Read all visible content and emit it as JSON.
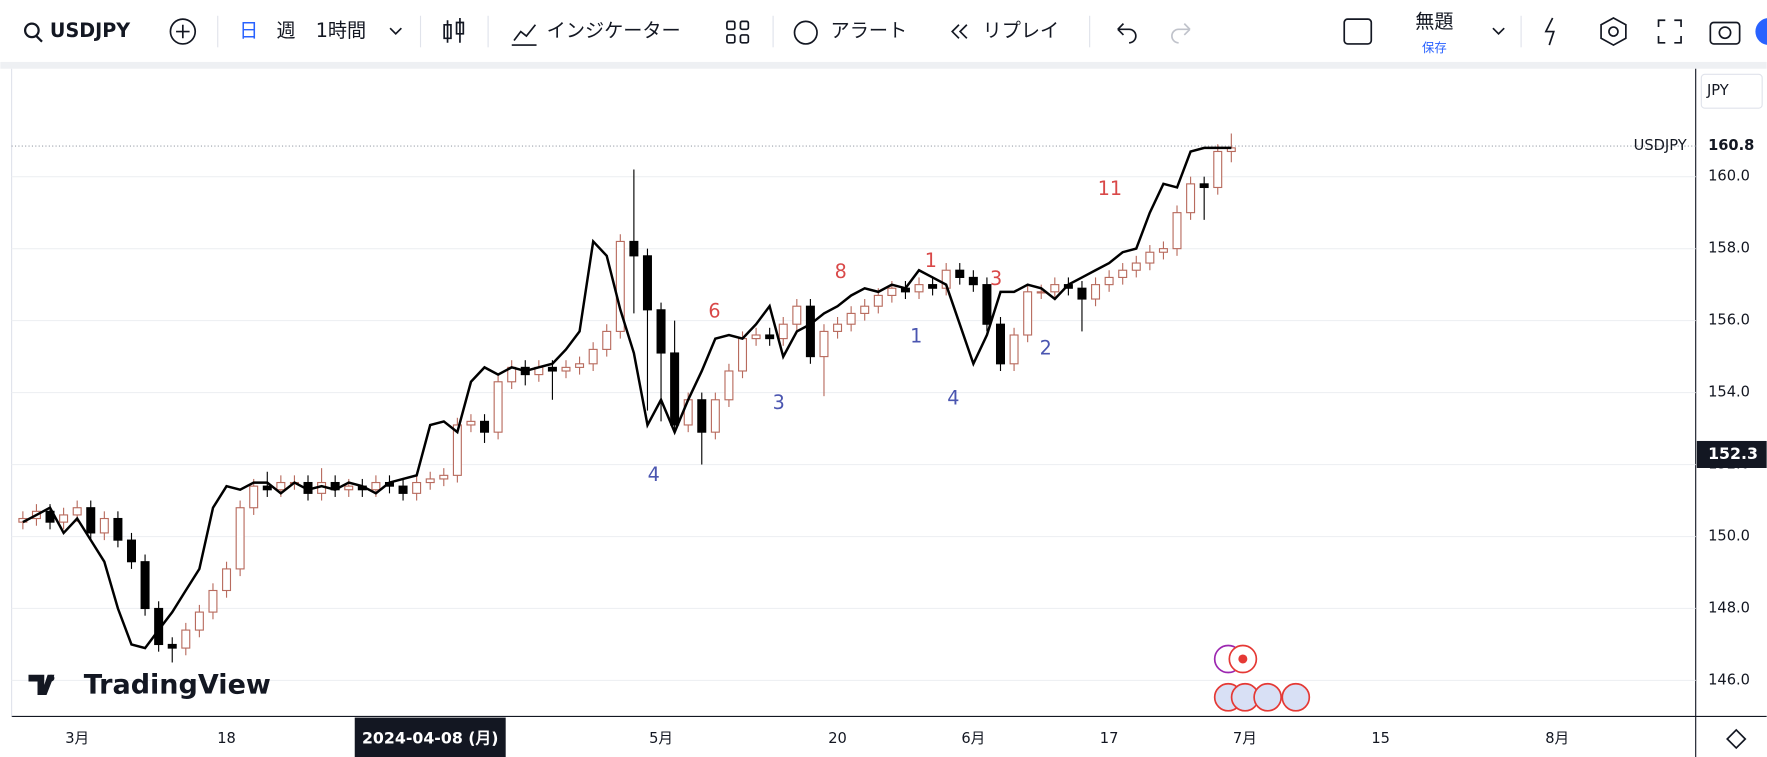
{
  "toolbar": {
    "symbol": "USDJPY",
    "day": "日",
    "week": "週",
    "interval": "1時間",
    "indicators": "インジケーター",
    "alert": "アラート",
    "replay": "リプレイ",
    "layout_name": "無題",
    "save": "保存"
  },
  "chart_data": {
    "type": "candlestick",
    "symbol_label": "USDJPY",
    "currency": "JPY",
    "logo": "TradingView",
    "up_color": "#b86b5e",
    "down_color": "#000000",
    "line_color": "#000000",
    "xlim": [
      -0.83,
      123.2
    ],
    "xticks": [
      {
        "value": 4,
        "label": "3月"
      },
      {
        "value": 15,
        "label": "18"
      },
      {
        "value": 47,
        "label": "5月"
      },
      {
        "value": 60,
        "label": "20"
      },
      {
        "value": 70,
        "label": "6月"
      },
      {
        "value": 80,
        "label": "17"
      },
      {
        "value": 90,
        "label": "7月"
      },
      {
        "value": 100,
        "label": "15"
      },
      {
        "value": 113,
        "label": "8月"
      }
    ],
    "crosshair": {
      "x": 30,
      "x_label": "2024-04-08 (月)",
      "y": 152.28,
      "y_label": "152.3"
    },
    "last_price": {
      "value": 160.85,
      "label": "160.8"
    },
    "ylim": [
      145,
      163
    ],
    "yticks": [
      {
        "value": 146,
        "label": "146.0"
      },
      {
        "value": 148,
        "label": "148.0"
      },
      {
        "value": 150,
        "label": "150.0"
      },
      {
        "value": 152,
        "label": "152.0"
      },
      {
        "value": 154,
        "label": "154.0"
      },
      {
        "value": 156,
        "label": "156.0"
      },
      {
        "value": 158,
        "label": "158.0"
      },
      {
        "value": 160,
        "label": "160.0"
      }
    ],
    "grid": true,
    "open": [
      150.4,
      150.5,
      150.7,
      150.4,
      150.6,
      150.8,
      150.1,
      150.5,
      149.9,
      149.3,
      148.0,
      147.0,
      146.9,
      147.4,
      147.9,
      148.5,
      149.1,
      150.8,
      151.4,
      151.3,
      151.5,
      151.5,
      151.2,
      151.5,
      151.3,
      151.4,
      151.3,
      151.5,
      151.4,
      151.2,
      151.5,
      151.6,
      151.7,
      153.1,
      153.2,
      152.9,
      154.3,
      154.7,
      154.5,
      154.7,
      154.6,
      154.7,
      154.8,
      155.2,
      155.7,
      158.2,
      157.8,
      156.3,
      155.1,
      153.1,
      153.8,
      152.9,
      153.8,
      154.6,
      155.5,
      155.6,
      155.5,
      155.9,
      156.4,
      155.0,
      155.7,
      155.9,
      156.2,
      156.4,
      156.7,
      156.9,
      156.8,
      157.0,
      156.9,
      157.4,
      157.2,
      157.0,
      155.9,
      154.8,
      155.6,
      156.8,
      156.8,
      157.0,
      156.9,
      156.6,
      157.0,
      157.2,
      157.4,
      157.6,
      157.9,
      158.0,
      159.0,
      159.8,
      159.7,
      160.7
    ],
    "high": [
      150.7,
      150.9,
      150.9,
      150.8,
      151.0,
      151.0,
      150.7,
      150.7,
      150.1,
      149.5,
      148.2,
      147.2,
      147.6,
      148.1,
      148.7,
      149.3,
      151.0,
      151.6,
      151.8,
      151.7,
      151.7,
      151.7,
      151.9,
      151.7,
      151.6,
      151.6,
      151.7,
      151.7,
      151.6,
      151.7,
      151.8,
      151.9,
      153.3,
      153.4,
      153.4,
      154.5,
      154.9,
      154.9,
      154.9,
      154.9,
      154.9,
      155.0,
      155.4,
      155.9,
      158.4,
      160.2,
      158.0,
      156.5,
      156.0,
      154.0,
      154.0,
      154.0,
      154.8,
      155.7,
      155.8,
      155.8,
      156.1,
      156.6,
      156.6,
      155.9,
      156.1,
      156.4,
      156.6,
      156.9,
      157.1,
      157.1,
      157.2,
      157.2,
      157.6,
      157.6,
      157.4,
      157.2,
      156.1,
      155.8,
      157.0,
      157.0,
      157.2,
      157.2,
      157.1,
      157.2,
      157.4,
      157.6,
      157.8,
      158.1,
      158.2,
      159.2,
      160.0,
      160.0,
      160.9,
      161.2
    ],
    "low": [
      150.2,
      150.3,
      150.2,
      150.2,
      150.4,
      149.9,
      149.9,
      149.7,
      149.1,
      147.8,
      146.8,
      146.5,
      146.7,
      147.2,
      147.7,
      148.3,
      148.9,
      150.6,
      151.1,
      151.1,
      151.3,
      151.0,
      151.0,
      151.1,
      151.1,
      151.1,
      151.1,
      151.2,
      151.0,
      151.0,
      151.3,
      151.4,
      151.5,
      152.9,
      152.6,
      152.7,
      154.1,
      154.2,
      154.3,
      153.8,
      154.4,
      154.5,
      154.6,
      155.0,
      155.5,
      156.2,
      153.5,
      153.2,
      152.9,
      152.9,
      152.0,
      152.7,
      153.6,
      154.4,
      155.3,
      155.3,
      155.3,
      155.7,
      154.8,
      153.9,
      155.5,
      155.7,
      156.0,
      156.2,
      156.5,
      156.6,
      156.6,
      156.7,
      156.7,
      157.0,
      156.8,
      155.7,
      154.6,
      154.6,
      155.4,
      156.6,
      156.6,
      156.7,
      155.7,
      156.4,
      156.8,
      157.0,
      157.2,
      157.4,
      157.7,
      157.8,
      158.8,
      158.8,
      159.5,
      160.4
    ],
    "close": [
      150.5,
      150.7,
      150.4,
      150.6,
      150.8,
      150.1,
      150.5,
      149.9,
      149.3,
      148.0,
      147.0,
      146.9,
      147.4,
      147.9,
      148.5,
      149.1,
      150.8,
      151.4,
      151.3,
      151.5,
      151.5,
      151.2,
      151.5,
      151.3,
      151.4,
      151.3,
      151.5,
      151.4,
      151.2,
      151.5,
      151.6,
      151.7,
      153.1,
      153.2,
      152.9,
      154.3,
      154.7,
      154.5,
      154.7,
      154.6,
      154.7,
      154.8,
      155.2,
      155.7,
      158.2,
      157.8,
      156.3,
      155.1,
      153.1,
      153.8,
      152.9,
      153.8,
      154.6,
      155.5,
      155.6,
      155.5,
      155.9,
      156.4,
      155.0,
      155.7,
      155.9,
      156.2,
      156.4,
      156.7,
      156.9,
      156.8,
      157.0,
      156.9,
      157.4,
      157.2,
      157.0,
      155.9,
      154.8,
      155.6,
      156.8,
      156.8,
      157.0,
      156.9,
      156.6,
      157.0,
      157.2,
      157.4,
      157.6,
      157.9,
      158.0,
      159.0,
      159.8,
      159.7,
      160.7,
      160.8
    ],
    "line": [
      150.4,
      150.6,
      150.8,
      150.1,
      150.5,
      149.9,
      149.3,
      148.0,
      147.0,
      146.9,
      147.4,
      147.9,
      148.5,
      149.1,
      150.8,
      151.4,
      151.3,
      151.5,
      151.5,
      151.2,
      151.5,
      151.3,
      151.4,
      151.3,
      151.5,
      151.4,
      151.2,
      151.5,
      151.6,
      151.7,
      153.1,
      153.2,
      152.9,
      154.3,
      154.7,
      154.5,
      154.7,
      154.6,
      154.7,
      154.8,
      155.2,
      155.7,
      158.2,
      157.8,
      156.3,
      155.1,
      153.1,
      153.8,
      152.9,
      153.8,
      154.6,
      155.5,
      155.6,
      155.5,
      155.9,
      156.4,
      155.0,
      155.7,
      155.9,
      156.2,
      156.4,
      156.7,
      156.9,
      156.8,
      157.0,
      156.9,
      157.4,
      157.2,
      157.0,
      155.9,
      154.8,
      155.6,
      156.8,
      156.8,
      157.0,
      156.9,
      156.6,
      157.0,
      157.2,
      157.4,
      157.6,
      157.9,
      158.0,
      159.0,
      159.8,
      159.7,
      160.7,
      160.8,
      160.8,
      160.8
    ],
    "annotations": [
      {
        "text": "11",
        "color": "#d94848"
      },
      {
        "text": "8",
        "color": "#d94848"
      },
      {
        "text": "1",
        "color": "#d94848"
      },
      {
        "text": "3",
        "color": "#d94848"
      },
      {
        "text": "6",
        "color": "#d94848"
      },
      {
        "text": "4",
        "color": "#4a55b0"
      },
      {
        "text": "3",
        "color": "#4a55b0"
      },
      {
        "text": "1",
        "color": "#4a55b0"
      },
      {
        "text": "4",
        "color": "#4a55b0"
      },
      {
        "text": "2",
        "color": "#4a55b0"
      }
    ]
  }
}
